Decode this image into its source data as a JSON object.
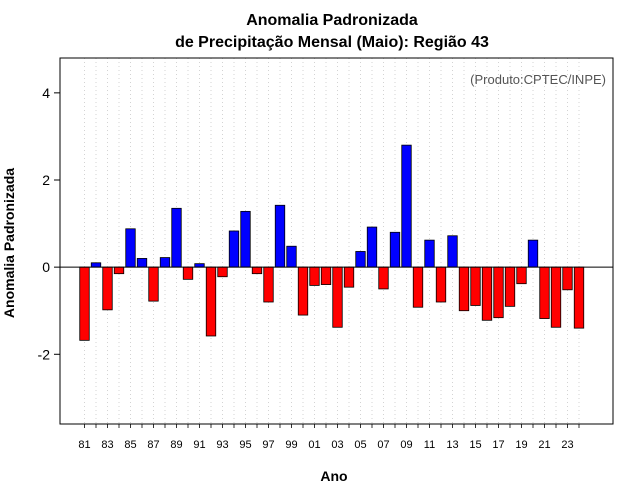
{
  "chart_data": {
    "type": "bar",
    "title": [
      "Anomalia Padronizada",
      "de Precipitação Mensal (Maio): Região 43"
    ],
    "xlabel": "Ano",
    "ylabel": "Anomalia Padronizada",
    "annotation": "(Produto:CPTEC/INPE)",
    "ylim": [
      -3.6,
      4.8
    ],
    "yticks": [
      -2,
      0,
      2,
      4
    ],
    "yticks_labels": [
      "-2",
      "0",
      "2",
      "4"
    ],
    "categories": [
      "81",
      "82",
      "83",
      "84",
      "85",
      "86",
      "87",
      "88",
      "89",
      "90",
      "91",
      "92",
      "93",
      "94",
      "95",
      "96",
      "97",
      "98",
      "99",
      "00",
      "01",
      "02",
      "03",
      "04",
      "05",
      "06",
      "07",
      "08",
      "09",
      "10",
      "11",
      "12",
      "13",
      "14",
      "15",
      "16",
      "17",
      "18",
      "19",
      "20",
      "21",
      "22",
      "23",
      "24"
    ],
    "values": [
      -1.68,
      0.1,
      -0.98,
      -0.15,
      0.88,
      0.2,
      -0.78,
      0.22,
      1.35,
      -0.28,
      0.08,
      -1.58,
      -0.22,
      0.83,
      1.28,
      -0.15,
      -0.8,
      1.42,
      0.48,
      -1.1,
      -0.42,
      -0.4,
      -1.38,
      -0.46,
      0.36,
      0.92,
      -0.5,
      0.8,
      2.8,
      -0.92,
      0.62,
      -0.8,
      0.72,
      -1.0,
      -0.88,
      -1.22,
      -1.16,
      -0.9,
      -0.38,
      0.62,
      -1.18,
      -1.38,
      -0.52,
      -1.4
    ],
    "xtick_labels_shown": [
      "81",
      "83",
      "85",
      "87",
      "89",
      "91",
      "93",
      "95",
      "97",
      "99",
      "01",
      "03",
      "05",
      "07",
      "09",
      "11",
      "13",
      "15",
      "17",
      "19",
      "21",
      "23"
    ],
    "colors": {
      "positive": "#0000ff",
      "negative": "#ff0000",
      "zero_line": "#000000",
      "grid": "#d3d3d3",
      "frame": "#000000"
    },
    "grid": "vertical-dotted"
  }
}
